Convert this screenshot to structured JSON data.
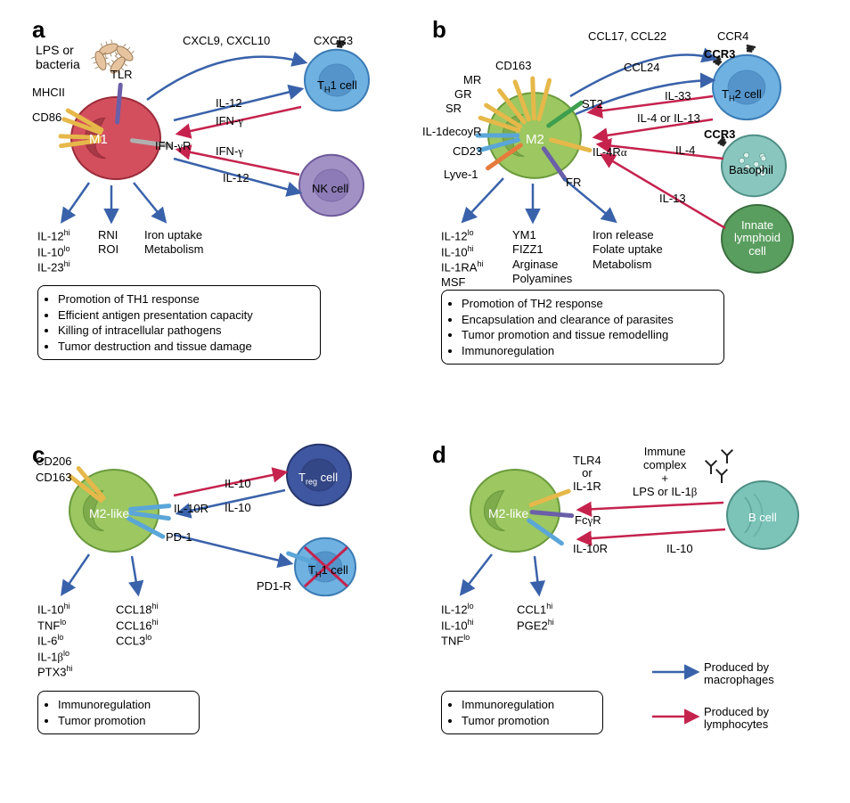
{
  "colors": {
    "blue_arrow": "#3a62aa",
    "red_arrow": "#c5234e",
    "m1_fill": "#d34f5e",
    "m1_stroke": "#9b2c3a",
    "m1_nucleus": "#a23944",
    "m2_fill": "#9cc761",
    "m2_stroke": "#6a9a3c",
    "m2_nucleus": "#7ba84a",
    "th1_fill": "#6fb1e0",
    "th1_stroke": "#3a7bb5",
    "th2_fill": "#6fb1e0",
    "th2_stroke": "#3a7bb5",
    "nk_fill": "#a291c5",
    "nk_stroke": "#6d5a99",
    "treg_fill": "#3f57a1",
    "treg_stroke": "#27366b",
    "baso_fill": "#89c6bd",
    "baso_stroke": "#4f8f87",
    "ilc_fill": "#5a9e5f",
    "ilc_stroke": "#3a6e3e",
    "bcell_fill": "#7cc4b8",
    "bcell_stroke": "#4d8e84",
    "bacteria": "#e6c4a0",
    "yellow_r": "#e6b84a",
    "blue_r": "#5aa6d8",
    "orange_r": "#e67a3c",
    "purple_r": "#6a5fa8",
    "green_r": "#3e9e4e",
    "grey_r": "#b0b0b0"
  },
  "panels": {
    "a": {
      "label": "a",
      "m1_label": "M1",
      "bacteria_label": "LPS or\nbacteria",
      "tlr": "TLR",
      "mhc": "MHCII",
      "cd86": "CD86",
      "ifngr": "IFN-γR",
      "chemokines": "CXCL9, CXCL10",
      "cxcr3": "CXCR3",
      "th1": "TH1 cell",
      "nk": "NK cell",
      "il12": "IL-12",
      "ifng": "IFN-γ",
      "outputs": [
        [
          "IL-12",
          "hi"
        ],
        [
          "IL-10",
          "lo"
        ],
        [
          "IL-23",
          "hi"
        ],
        [
          "RNI",
          ""
        ],
        [
          "ROI",
          ""
        ],
        [
          "Iron uptake",
          ""
        ],
        [
          "Metabolism",
          ""
        ]
      ],
      "functions": [
        "Promotion of TH1 response",
        "Efficient antigen presentation capacity",
        "Killing of intracellular pathogens",
        "Tumor destruction and tissue damage"
      ]
    },
    "b": {
      "label": "b",
      "m2_label": "M2",
      "receptors": [
        "CD163",
        "MR",
        "GR",
        "SR",
        "IL-1decoyR",
        "CD23",
        "Lyve-1",
        "ST2",
        "IL-4Rα",
        "FR"
      ],
      "chemokines1": "CCL17, CCL22",
      "chemokines2": "CCL24",
      "ccr4": "CCR4",
      "ccr3": "CCR3",
      "th2": "TH2 cell",
      "il33": "IL-33",
      "il4_13": "IL-4 or IL-13",
      "il4": "IL-4",
      "il13": "IL-13",
      "basophil": "Basophil",
      "ilc": "Innate\nlymphoid\ncell",
      "outputs_col1": [
        [
          "IL-12",
          "lo"
        ],
        [
          "IL-10",
          "hi"
        ],
        [
          "IL-1RA",
          "hi"
        ],
        [
          "MSF",
          ""
        ]
      ],
      "outputs_col2": [
        "YM1",
        "FIZZ1",
        "Arginase",
        "Polyamines"
      ],
      "outputs_col3": [
        "Iron release",
        "Folate uptake",
        "Metabolism"
      ],
      "functions": [
        "Promotion of TH2 response",
        "Encapsulation and clearance of parasites",
        "Tumor promotion and tissue remodelling",
        "Immunoregulation"
      ]
    },
    "c": {
      "label": "c",
      "m2_label": "M2-like",
      "cd206": "CD206",
      "cd163": "CD163",
      "il10r": "IL-10R",
      "pd1": "PD-1",
      "il10": "IL-10",
      "pd1r": "PD1-R",
      "treg": "Treg cell",
      "th1": "TH1 cell",
      "outputs_col1": [
        [
          "IL-10",
          "hi"
        ],
        [
          "TNF",
          "lo"
        ],
        [
          "IL-6",
          "lo"
        ],
        [
          "IL-1β",
          "lo"
        ],
        [
          "PTX3",
          "hi"
        ]
      ],
      "outputs_col2": [
        [
          "CCL18",
          "hi"
        ],
        [
          "CCL16",
          "hi"
        ],
        [
          "CCL3",
          "lo"
        ]
      ],
      "functions": [
        "Immunoregulation",
        "Tumor promotion"
      ]
    },
    "d": {
      "label": "d",
      "m2_label": "M2-like",
      "tlr4": "TLR4\nor\nIL-1R",
      "fcgr": "FcγR",
      "il10r": "IL-10R",
      "ic": "Immune\ncomplex\n+\nLPS or IL-1β",
      "il10": "IL-10",
      "bcell": "B cell",
      "outputs_col1": [
        [
          "IL-12",
          "lo"
        ],
        [
          "IL-10",
          "hi"
        ],
        [
          "TNF",
          "lo"
        ]
      ],
      "outputs_col2": [
        [
          "CCL1",
          "hi"
        ],
        [
          "PGE2",
          "hi"
        ]
      ],
      "functions": [
        "Immunoregulation",
        "Tumor promotion"
      ],
      "legend_mac": "Produced by\nmacrophages",
      "legend_lym": "Produced by\nlymphocytes"
    }
  }
}
